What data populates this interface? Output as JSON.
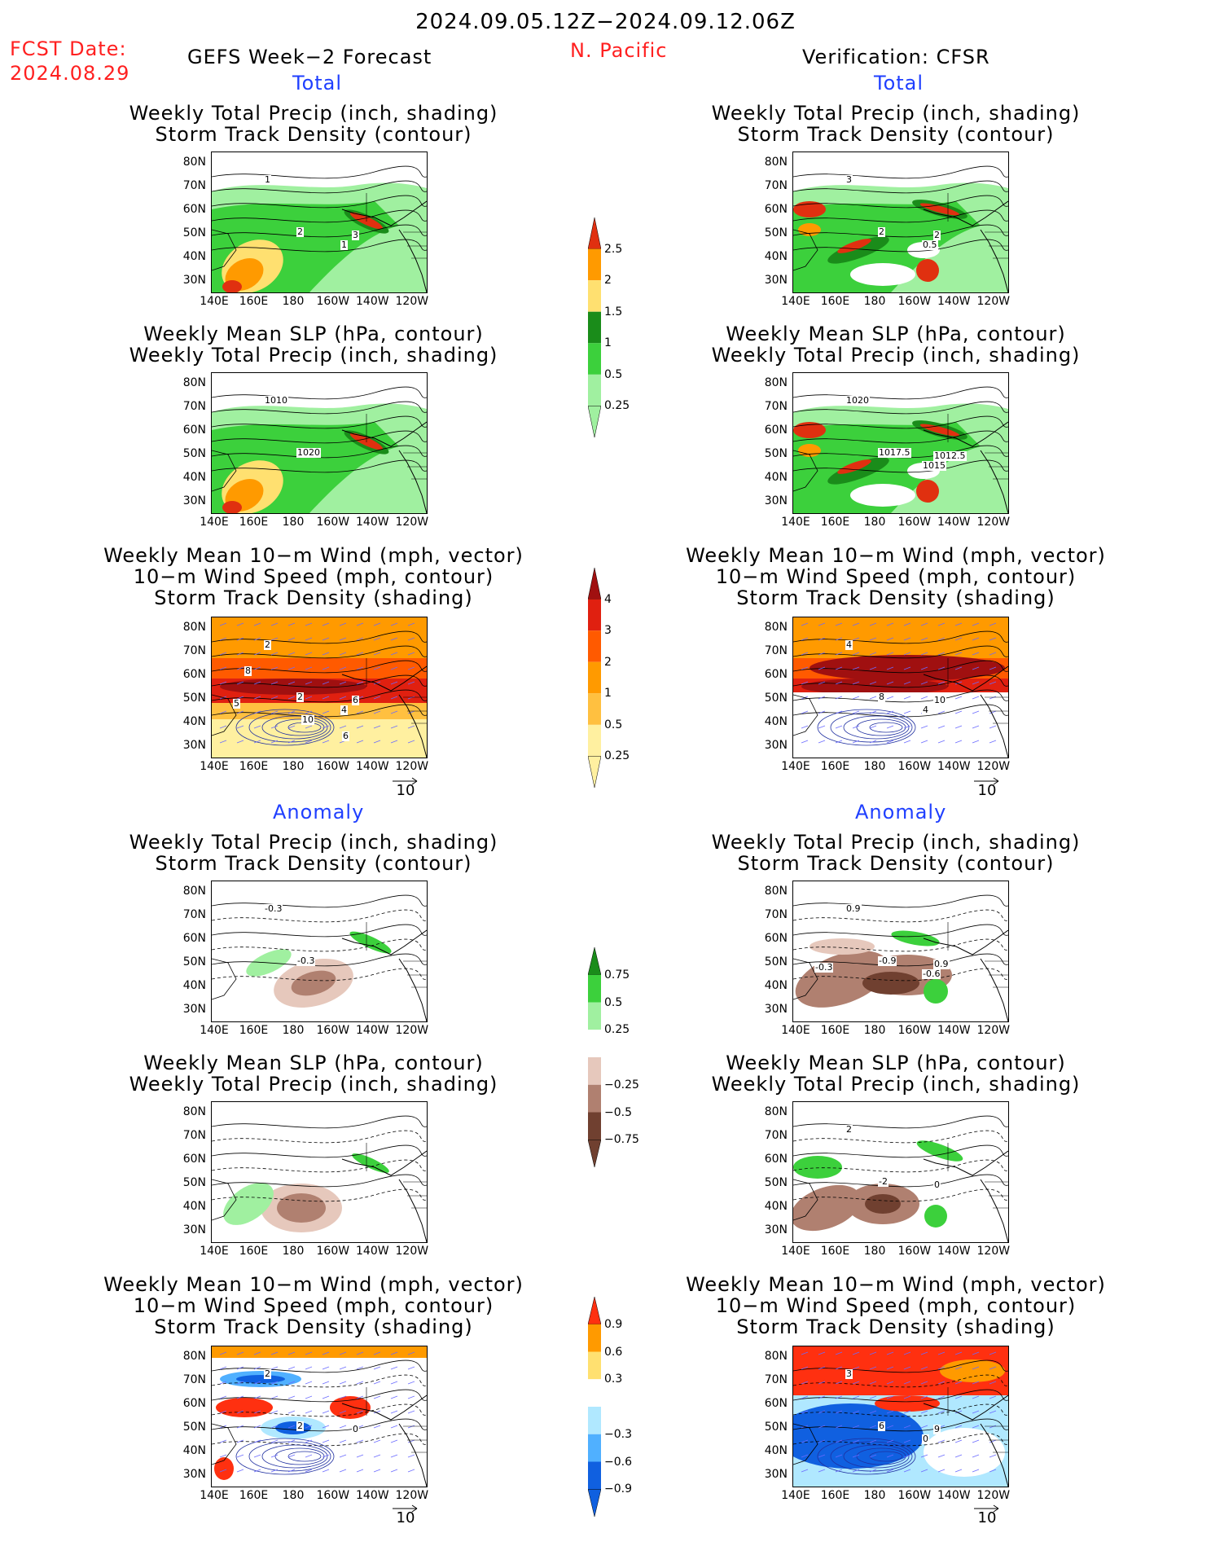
{
  "header": {
    "date_range": "2024.09.05.12Z−2024.09.12.06Z",
    "fcst_label": "FCST Date:",
    "fcst_date": "2024.08.29",
    "left_title": "GEFS Week−2 Forecast",
    "region": "N. Pacific",
    "right_title": "Verification: CFSR"
  },
  "sections": {
    "total": "Total",
    "anomaly": "Anomaly"
  },
  "panel_titles": {
    "precip_track": [
      "Weekly Total Precip (inch, shading)",
      "Storm Track Density (contour)"
    ],
    "slp_precip": [
      "Weekly Mean SLP (hPa, contour)",
      "Weekly Total Precip (inch, shading)"
    ],
    "wind_track": [
      "Weekly Mean 10−m Wind (mph, vector)",
      "10−m Wind Speed (mph, contour)",
      "Storm Track Density (shading)"
    ]
  },
  "axes": {
    "lat_labels": [
      "80N",
      "70N",
      "60N",
      "50N",
      "40N",
      "30N"
    ],
    "lon_labels": [
      "140E",
      "160E",
      "180",
      "160W",
      "140W",
      "120W"
    ]
  },
  "vector_ref": "10",
  "colorbars": {
    "precip_total": {
      "labels": [
        "2.5",
        "2",
        "1.5",
        "1",
        "0.5",
        "0.25"
      ],
      "colors": [
        "#e03010",
        "#ff9a00",
        "#ffe070",
        "#1a8c1a",
        "#3cd03c",
        "#a0f0a0"
      ]
    },
    "track_total": {
      "labels": [
        "4",
        "3",
        "2",
        "1",
        "0.5",
        "0.25"
      ],
      "colors": [
        "#a01010",
        "#e02010",
        "#ff5a00",
        "#ff9a00",
        "#ffc040",
        "#fff0a0"
      ]
    },
    "precip_anom": {
      "labels": [
        "0.75",
        "0.5",
        "0.25",
        "−0.25",
        "−0.5",
        "−0.75"
      ],
      "colors": [
        "#1a8c1a",
        "#3cd03c",
        "#a0f0a0",
        "#ffffff",
        "#e6c8bc",
        "#b08070",
        "#704030"
      ]
    },
    "track_anom": {
      "labels": [
        "0.9",
        "0.6",
        "0.3",
        "−0.3",
        "−0.6",
        "−0.9"
      ],
      "colors": [
        "#ff3010",
        "#ff9a00",
        "#ffe070",
        "#ffffff",
        "#b0e8ff",
        "#50b0ff",
        "#1060e0"
      ]
    }
  },
  "contour_labels": {
    "f_pt": [
      "1",
      "2",
      "3",
      "1"
    ],
    "v_pt": [
      "3",
      "2",
      "2",
      "0.5"
    ],
    "f_slp": [
      "1010",
      "1020"
    ],
    "v_slp": [
      "1020",
      "1017.5",
      "1012.5",
      "1015"
    ],
    "f_wind": [
      "2",
      "2",
      "6",
      "4",
      "5",
      "6",
      "10",
      "8"
    ],
    "v_wind": [
      "4",
      "8",
      "10",
      "4"
    ],
    "f_apt": [
      "-0.3",
      "-0.3"
    ],
    "v_apt": [
      "0.9",
      "-0.9",
      "0.9",
      "-0.6",
      "-0.3"
    ],
    "f_aslp": [],
    "v_aslp": [
      "2",
      "-2",
      "0"
    ],
    "f_awind": [
      "2",
      "2",
      "0"
    ],
    "v_awind": [
      "3",
      "6",
      "9",
      "0"
    ]
  }
}
